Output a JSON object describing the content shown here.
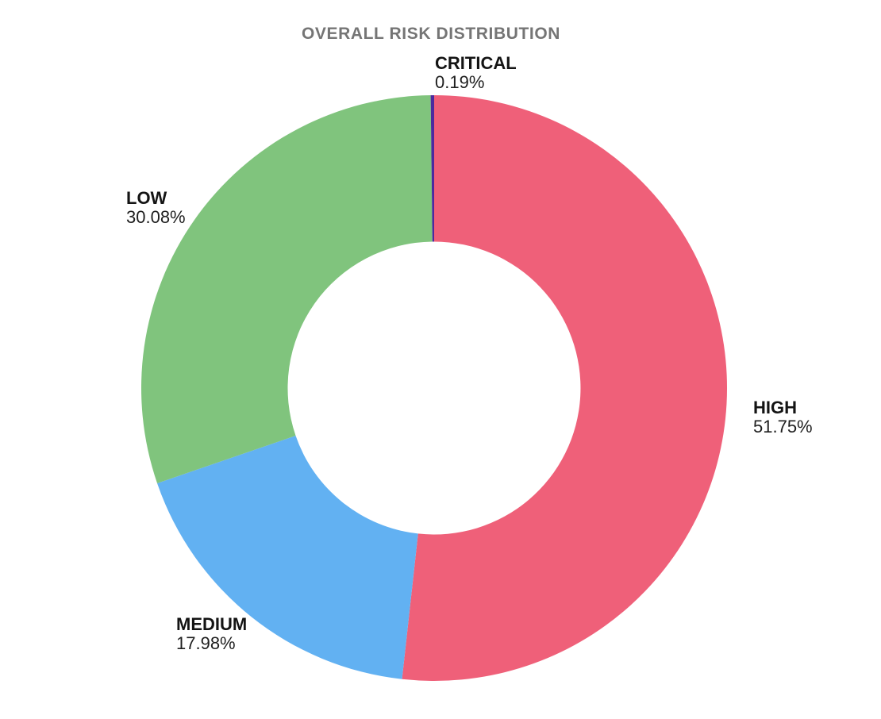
{
  "title": "OVERALL RISK DISTRIBUTION",
  "chart_data": {
    "type": "pie",
    "title": "OVERALL RISK DISTRIBUTION",
    "subtype": "donut",
    "hole_ratio": 0.5,
    "rotation_deg": 0,
    "direction": "clockwise",
    "legend": "none",
    "background_color": "#ffffff",
    "title_color": "#757575",
    "label_text_color": "#141414",
    "segments": [
      {
        "label": "HIGH",
        "value_pct": 51.75,
        "display_pct": "51.75%",
        "color": "#EF6079"
      },
      {
        "label": "MEDIUM",
        "value_pct": 17.98,
        "display_pct": "17.98%",
        "color": "#62B1F2"
      },
      {
        "label": "LOW",
        "value_pct": 30.08,
        "display_pct": "30.08%",
        "color": "#80C47D"
      },
      {
        "label": "CRITICAL",
        "value_pct": 0.19,
        "display_pct": "0.19%",
        "color": "#4C2A9E"
      }
    ]
  }
}
